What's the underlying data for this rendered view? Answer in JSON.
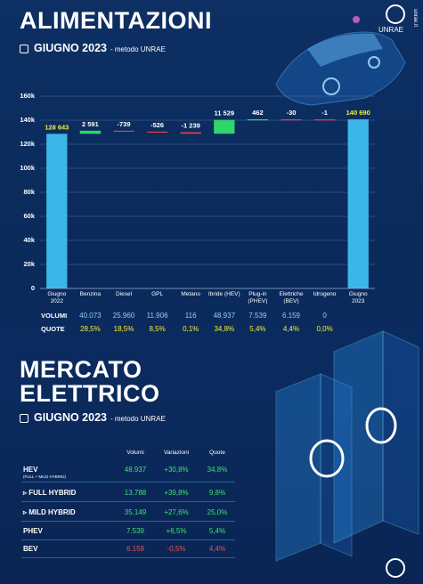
{
  "header": {
    "title": "ALIMENTAZIONI",
    "subtitle_date": "GIUGNO 2023",
    "subtitle_method": "- metodo UNRAE",
    "brand": "UNRAE",
    "site": "unrae.it"
  },
  "chart_data": {
    "type": "waterfall",
    "categories": [
      "Giugno 2022",
      "Benzina",
      "Diesel",
      "GPL",
      "Metano",
      "Ibride (HEV)",
      "Plug-in (PHEV)",
      "Elettriche (BEV)",
      "Idrogeno",
      "Giugno 2023"
    ],
    "values": [
      128643,
      2591,
      -739,
      -526,
      -1239,
      11529,
      462,
      -30,
      -1,
      140690
    ],
    "value_labels": [
      "128 643",
      "2 591",
      "-739",
      "-526",
      "-1 239",
      "11 529",
      "462",
      "-30",
      "-1",
      "140 690"
    ],
    "ylim": [
      0,
      160000
    ],
    "yticks": [
      0,
      {
        "value": 20000,
        "label": "20k"
      },
      {
        "value": 40000,
        "label": "40k"
      },
      {
        "value": 60000,
        "label": "60k"
      },
      {
        "value": 80000,
        "label": "80k"
      },
      {
        "value": 100000,
        "label": "100k"
      },
      {
        "value": 120000,
        "label": "120k"
      },
      {
        "value": 140000,
        "label": "140k"
      },
      {
        "value": 160000,
        "label": "160k"
      }
    ],
    "grid": true,
    "total_color": "#3cb6e8",
    "increase_color": "#2fd66b",
    "decrease_color": "#e8413f",
    "rows": [
      {
        "label": "VOLUMI",
        "values": [
          "40.073",
          "25.960",
          "11.906",
          "116",
          "48.937",
          "7.539",
          "6.159",
          "0"
        ],
        "color": "#8fd0f2"
      },
      {
        "label": "QUOTE",
        "values": [
          "28,5%",
          "18,5%",
          "8,5%",
          "0,1%",
          "34,8%",
          "5,4%",
          "4,4%",
          "0,0%"
        ],
        "color": "#f4ee3c"
      }
    ]
  },
  "market": {
    "title_lines": [
      "MERCATO",
      "ELETTRICO"
    ],
    "subtitle_date": "GIUGNO 2023",
    "subtitle_method": "- metodo UNRAE",
    "columns": [
      "Volumi",
      "Variazioni",
      "Quote"
    ],
    "rows": [
      {
        "label": "HEV",
        "sublabel": "(FULL + MILD HYBRID)",
        "cells": [
          "48.937",
          "+30,8%",
          "34,8%"
        ],
        "colors": [
          "#3ee06f",
          "#3ee06f",
          "#3ee06f"
        ]
      },
      {
        "label": "▹ FULL HYBRID",
        "cells": [
          "13.788",
          "+39,8%",
          "9,8%"
        ],
        "colors": [
          "#3ee06f",
          "#3ee06f",
          "#3ee06f"
        ]
      },
      {
        "label": "▹ MILD HYBRID",
        "cells": [
          "35.149",
          "+27,6%",
          "25,0%"
        ],
        "colors": [
          "#3ee06f",
          "#3ee06f",
          "#3ee06f"
        ]
      },
      {
        "label": "PHEV",
        "cells": [
          "7.539",
          "+6,5%",
          "5,4%"
        ],
        "colors": [
          "#3ee06f",
          "#3ee06f",
          "#3ee06f"
        ]
      },
      {
        "label": "BEV",
        "cells": [
          "6.159",
          "-0,5%",
          "4,4%"
        ],
        "colors": [
          "#f0504f",
          "#f0504f",
          "#f0504f"
        ]
      }
    ]
  }
}
